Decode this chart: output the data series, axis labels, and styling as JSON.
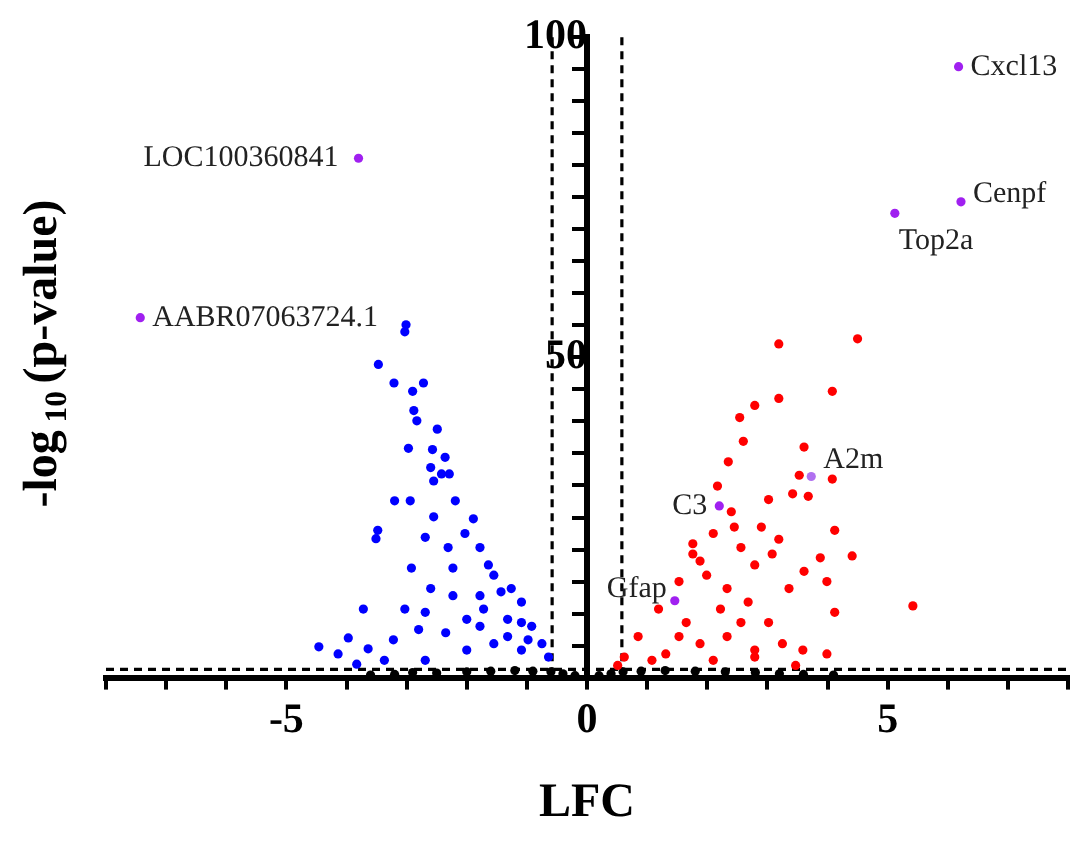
{
  "chart_data": {
    "type": "scatter",
    "xlabel": "LFC",
    "ylabel": "-log$_{10}$(p-value)",
    "marker": "circle",
    "grid": false,
    "legend": false,
    "xlim": [
      -8,
      8
    ],
    "ylim": [
      0,
      100
    ],
    "xticks": [
      {
        "value": -8,
        "label": null
      },
      {
        "value": -7,
        "label": null
      },
      {
        "value": -6,
        "label": null
      },
      -5,
      {
        "value": -4,
        "label": null
      },
      {
        "value": -3,
        "label": null
      },
      {
        "value": -2,
        "label": null
      },
      {
        "value": -1,
        "label": null
      },
      0,
      {
        "value": 1,
        "label": null
      },
      {
        "value": 2,
        "label": null
      },
      {
        "value": 3,
        "label": null
      },
      {
        "value": 4,
        "label": null
      },
      5,
      {
        "value": 6,
        "label": null
      },
      {
        "value": 7,
        "label": null
      },
      {
        "value": 8,
        "label": null
      }
    ],
    "yticks": [
      {
        "value": 0,
        "label": null
      },
      {
        "value": 5,
        "label": null
      },
      {
        "value": 10,
        "label": null
      },
      {
        "value": 15,
        "label": null
      },
      {
        "value": 20,
        "label": null
      },
      {
        "value": 25,
        "label": null
      },
      {
        "value": 30,
        "label": null
      },
      {
        "value": 35,
        "label": null
      },
      {
        "value": 40,
        "label": null
      },
      {
        "value": 45,
        "label": null
      },
      50,
      {
        "value": 55,
        "label": null
      },
      {
        "value": 60,
        "label": null
      },
      {
        "value": 65,
        "label": null
      },
      {
        "value": 70,
        "label": null
      },
      {
        "value": 75,
        "label": null
      },
      {
        "value": 80,
        "label": null
      },
      {
        "value": 85,
        "label": null
      },
      {
        "value": 90,
        "label": null
      },
      {
        "value": 95,
        "label": null
      },
      100
    ],
    "ref_lines": [
      {
        "axis": "y",
        "value": 1.3,
        "color": "#000000",
        "line_style": "dashed"
      },
      {
        "axis": "x",
        "value": -0.58,
        "color": "#000000",
        "line_style": "dashed"
      },
      {
        "axis": "x",
        "value": 0.58,
        "color": "#000000",
        "line_style": "dashed"
      }
    ],
    "series": [
      {
        "color": "#0000ff",
        "x": [
          -3.01,
          -3.03,
          -3.47,
          -3.21,
          -2.9,
          -2.72,
          -2.88,
          -2.83,
          -2.49,
          -2.97,
          -2.57,
          -2.36,
          -2.6,
          -2.42,
          -2.29,
          -2.55,
          -2.19,
          -2.94,
          -3.2,
          -2.55,
          -3.48,
          -3.51,
          -2.03,
          -2.69,
          -1.89,
          -1.78,
          -2.31,
          -1.64,
          -2.92,
          -2.23,
          -1.55,
          -1.26,
          -2.6,
          -3.72,
          -3.03,
          -1.78,
          -1.09,
          -2.69,
          -2.0,
          -3.97,
          -4.46,
          -4.14,
          -3.64,
          -3.22,
          -2.8,
          -2.35,
          -1.78,
          -1.32,
          -0.92,
          -0.75,
          -0.64,
          -1.55,
          -2.0,
          -3.37,
          -3.83,
          -2.69,
          -1.09,
          -1.32,
          -0.98,
          -1.72,
          -1.43,
          -2.23,
          -1.09
        ],
        "values": [
          55.1,
          54.0,
          48.9,
          46.0,
          44.7,
          46.0,
          41.7,
          40.1,
          38.8,
          35.8,
          35.6,
          34.4,
          32.8,
          31.8,
          31.8,
          30.7,
          27.6,
          27.6,
          27.6,
          25.1,
          23.0,
          21.7,
          22.5,
          21.9,
          24.8,
          20.3,
          20.3,
          17.6,
          17.1,
          17.1,
          16.0,
          13.9,
          13.9,
          10.7,
          10.7,
          12.8,
          11.8,
          10.2,
          9.1,
          6.2,
          4.8,
          3.7,
          4.5,
          5.9,
          7.5,
          7.0,
          8.0,
          9.1,
          8.0,
          5.3,
          3.2,
          5.3,
          4.3,
          2.7,
          2.1,
          2.7,
          4.3,
          6.4,
          5.9,
          10.7,
          13.4,
          12.8,
          8.6
        ]
      },
      {
        "color": "#ff0000",
        "x": [
          4.5,
          3.19,
          3.19,
          4.08,
          2.79,
          2.54,
          2.6,
          3.61,
          2.35,
          4.08,
          3.53,
          2.17,
          2.4,
          3.02,
          3.42,
          3.68,
          4.12,
          4.41,
          5.42,
          4.12,
          3.61,
          3.99,
          3.88,
          3.59,
          3.99,
          3.47,
          3.19,
          2.79,
          2.56,
          2.1,
          1.76,
          1.99,
          1.53,
          1.19,
          0.85,
          0.62,
          0.51,
          1.65,
          2.22,
          2.68,
          3.02,
          3.25,
          2.79,
          2.33,
          1.88,
          1.31,
          2.33,
          1.88,
          1.76,
          2.9,
          2.45,
          3.08,
          3.36,
          2.56,
          1.53,
          2.79,
          2.1,
          1.08
        ],
        "values": [
          52.9,
          52.1,
          43.6,
          44.7,
          42.5,
          40.6,
          36.9,
          36.0,
          33.7,
          31.0,
          31.6,
          29.9,
          25.9,
          27.8,
          28.7,
          28.3,
          23.0,
          19.0,
          11.2,
          10.2,
          16.6,
          15.0,
          18.7,
          4.3,
          3.7,
          1.9,
          21.6,
          17.6,
          20.3,
          22.5,
          19.3,
          16.0,
          15.0,
          10.7,
          6.4,
          3.2,
          1.9,
          8.6,
          10.7,
          11.8,
          8.6,
          5.3,
          4.3,
          6.4,
          5.3,
          3.7,
          13.9,
          18.2,
          20.9,
          23.5,
          23.5,
          19.3,
          13.9,
          8.6,
          6.4,
          3.2,
          2.7,
          2.7
        ]
      },
      {
        "color": "#000000",
        "x": [
          -3.6,
          -3.2,
          -2.9,
          -2.5,
          -2.0,
          -1.6,
          -1.2,
          -0.9,
          -0.6,
          -0.4,
          -0.2,
          0.2,
          0.4,
          0.6,
          0.9,
          1.3,
          1.8,
          2.3,
          2.8,
          3.2,
          3.6,
          4.1
        ],
        "values": [
          0.4,
          0.5,
          0.8,
          0.7,
          0.9,
          1.0,
          1.1,
          1.0,
          0.9,
          0.6,
          0.3,
          0.3,
          0.6,
          0.9,
          1.0,
          1.1,
          1.0,
          0.9,
          0.8,
          0.6,
          0.5,
          0.4
        ]
      },
      {
        "colors": [
          "#a020f0",
          "#a020f0",
          "#a020f0",
          "#a020f0",
          "#a020f0",
          "#b070f0",
          "#a020f0",
          "#a020f0"
        ],
        "x": [
          6.18,
          -3.8,
          6.22,
          5.12,
          -7.43,
          3.73,
          2.2,
          1.46
        ],
        "values": [
          95.4,
          81.1,
          74.3,
          72.5,
          56.2,
          31.4,
          26.8,
          12.0
        ]
      }
    ],
    "annotations": [
      {
        "text": "Cxcl13",
        "x": 6.18,
        "y": 95.4
      },
      {
        "text": "LOC100360841",
        "x": -3.8,
        "y": 81.1
      },
      {
        "text": "Cenpf",
        "x": 6.22,
        "y": 74.3
      },
      {
        "text": "Top2a",
        "x": 5.12,
        "y": 72.5
      },
      {
        "text": "AABR07063724.1",
        "x": -7.43,
        "y": 56.2
      },
      {
        "text": "A2m",
        "x": 3.73,
        "y": 31.4
      },
      {
        "text": "C3",
        "x": 2.2,
        "y": 26.8
      },
      {
        "text": "Gfap",
        "x": 1.46,
        "y": 12.0
      }
    ]
  }
}
